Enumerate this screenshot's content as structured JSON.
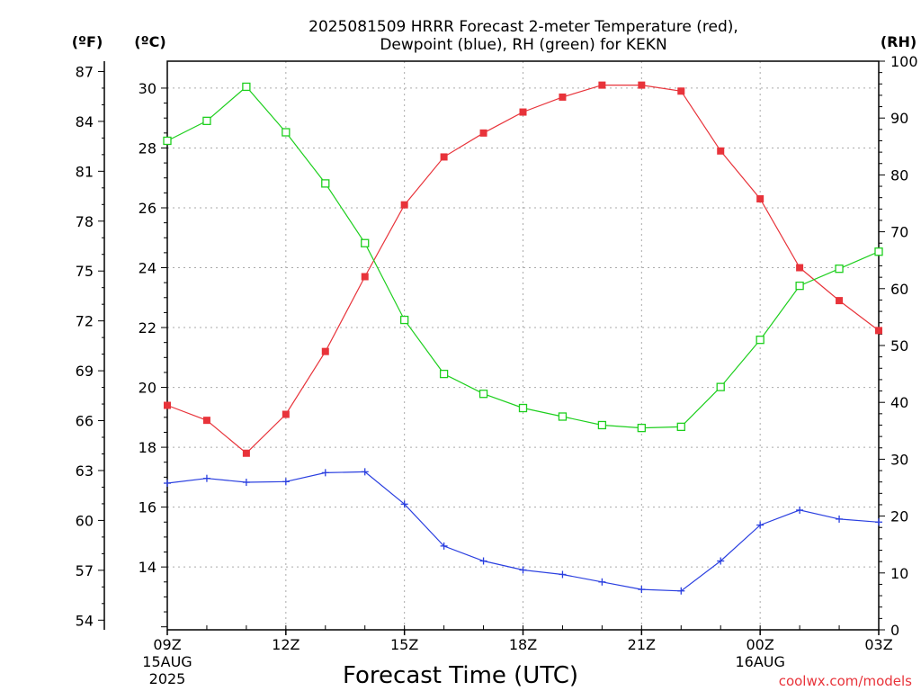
{
  "chart_data": {
    "type": "line",
    "title": "2025081509 HRRR Forecast 2-meter Temperature (red),",
    "subtitle": "Dewpoint (blue), RH (green) for KEKN",
    "xlabel": "Forecast Time (UTC)",
    "credit": "coolwx.com/models",
    "units": {
      "fahrenheit": "(ºF)",
      "celsius": "(ºC)",
      "rh": "(RH)"
    },
    "x_ticks": [
      {
        "hour": 0,
        "label": "09Z",
        "sub1": "15AUG",
        "sub2": "2025"
      },
      {
        "hour": 3,
        "label": "12Z",
        "sub1": "",
        "sub2": ""
      },
      {
        "hour": 6,
        "label": "15Z",
        "sub1": "",
        "sub2": ""
      },
      {
        "hour": 9,
        "label": "18Z",
        "sub1": "",
        "sub2": ""
      },
      {
        "hour": 12,
        "label": "21Z",
        "sub1": "",
        "sub2": ""
      },
      {
        "hour": 15,
        "label": "00Z",
        "sub1": "16AUG",
        "sub2": ""
      },
      {
        "hour": 18,
        "label": "03Z",
        "sub1": "",
        "sub2": ""
      }
    ],
    "xlim": [
      0,
      18
    ],
    "celsius_axis": {
      "ylim": [
        11.9,
        30.9
      ],
      "ticks": [
        "14",
        "16",
        "18",
        "20",
        "22",
        "24",
        "26",
        "28",
        "30"
      ]
    },
    "fahrenheit_axis": {
      "ticks": [
        "54",
        "57",
        "60",
        "63",
        "66",
        "69",
        "72",
        "75",
        "78",
        "81",
        "84",
        "87"
      ]
    },
    "rh_axis": {
      "ylim": [
        0,
        100
      ],
      "ticks": [
        "0",
        "10",
        "20",
        "30",
        "40",
        "50",
        "60",
        "70",
        "80",
        "90",
        "100"
      ]
    },
    "grid": true,
    "series": [
      {
        "name": "Temperature",
        "axis": "celsius",
        "color": "#e8333a",
        "marker": "filled-square",
        "x": [
          0,
          1,
          2,
          3,
          4,
          5,
          6,
          7,
          8,
          9,
          10,
          11,
          12,
          13,
          14,
          15,
          16,
          17,
          18
        ],
        "values": [
          19.4,
          18.9,
          17.8,
          19.1,
          21.2,
          23.7,
          26.1,
          27.7,
          28.5,
          29.2,
          29.7,
          30.1,
          30.1,
          29.9,
          27.9,
          26.3,
          24.0,
          22.9,
          21.9
        ]
      },
      {
        "name": "Dewpoint",
        "axis": "celsius",
        "color": "#2a3fe0",
        "marker": "plus",
        "x": [
          0,
          1,
          2,
          3,
          4,
          5,
          6,
          7,
          8,
          9,
          10,
          11,
          12,
          13,
          14,
          15,
          16,
          17,
          18
        ],
        "values": [
          16.8,
          16.96,
          16.83,
          16.85,
          17.15,
          17.18,
          16.1,
          14.7,
          14.2,
          13.9,
          13.75,
          13.5,
          13.25,
          13.2,
          14.2,
          15.4,
          15.9,
          15.6,
          15.5
        ]
      },
      {
        "name": "RH",
        "axis": "rh",
        "color": "#1ecf1e",
        "marker": "open-square",
        "x": [
          0,
          1,
          2,
          3,
          4,
          5,
          6,
          7,
          8,
          9,
          10,
          11,
          12,
          13,
          14,
          15,
          16,
          17,
          18
        ],
        "values": [
          86,
          89.5,
          95.5,
          87.5,
          78.5,
          68,
          54.5,
          45,
          41.5,
          39,
          37.5,
          36,
          35.5,
          35.7,
          42.7,
          51,
          60.5,
          63.5,
          66.5
        ]
      }
    ]
  }
}
